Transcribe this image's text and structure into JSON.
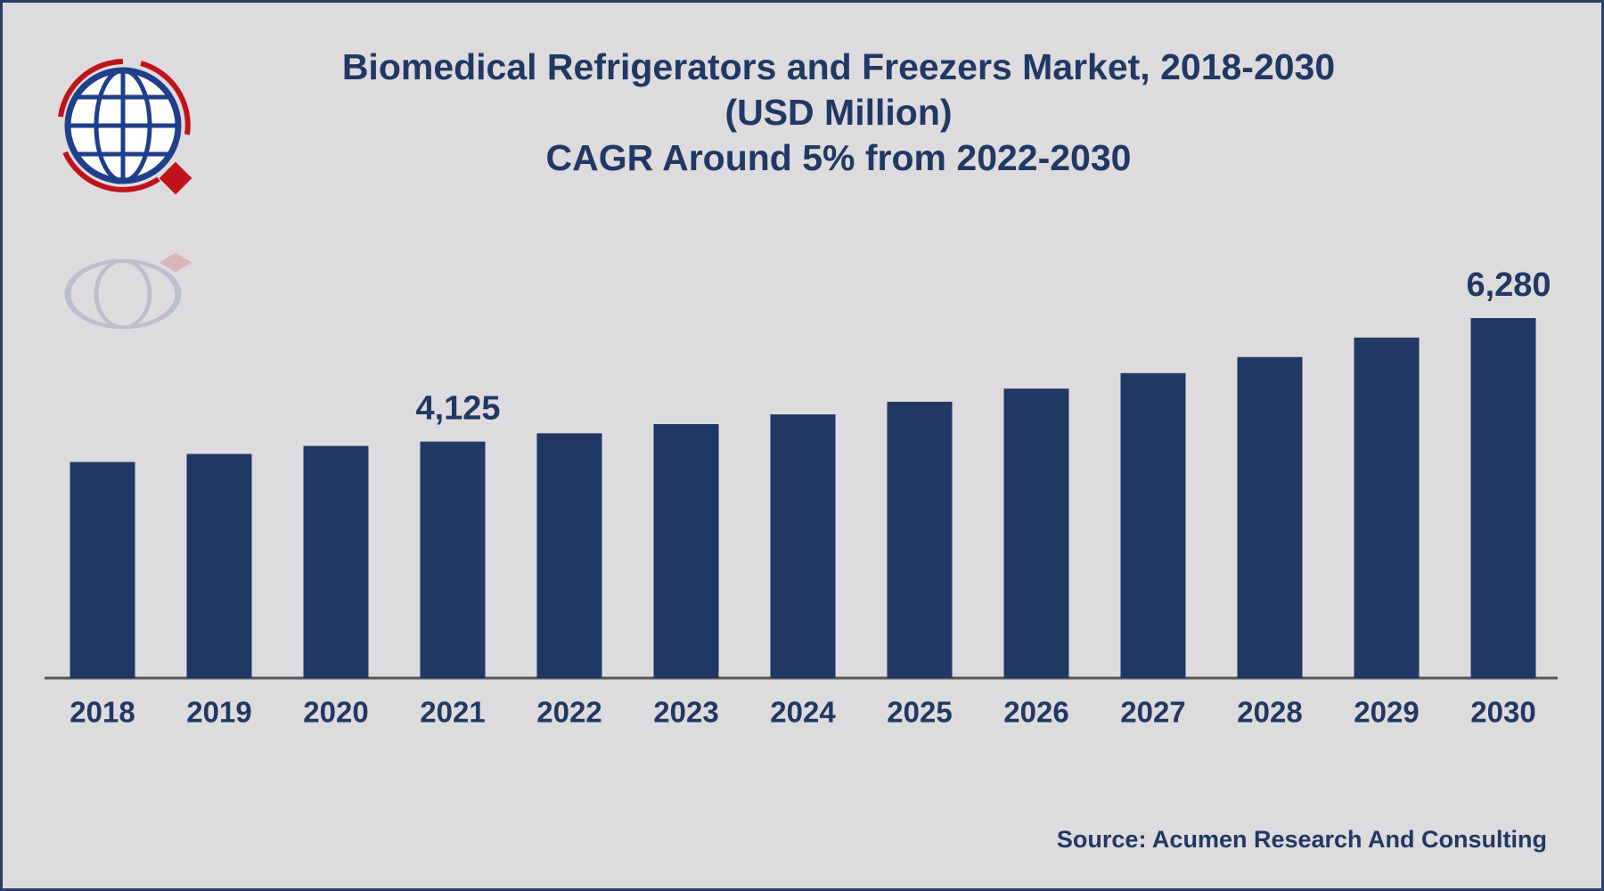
{
  "chart_data": {
    "type": "bar",
    "title": "Biomedical Refrigerators and Freezers Market, 2018-2030",
    "subtitle": [
      "(USD Million)",
      "CAGR Around 5% from 2022-2030"
    ],
    "categories": [
      "2018",
      "2019",
      "2020",
      "2021",
      "2022",
      "2023",
      "2024",
      "2025",
      "2026",
      "2027",
      "2028",
      "2029",
      "2030"
    ],
    "values": [
      3770,
      3910,
      4050,
      4125,
      4270,
      4430,
      4600,
      4820,
      5050,
      5320,
      5600,
      5940,
      6280
    ],
    "value_labels": [
      null,
      null,
      null,
      "4,125",
      null,
      null,
      null,
      null,
      null,
      null,
      null,
      null,
      "6,280"
    ],
    "color": "#203864",
    "source": "Source: Acumen Research And Consulting"
  }
}
